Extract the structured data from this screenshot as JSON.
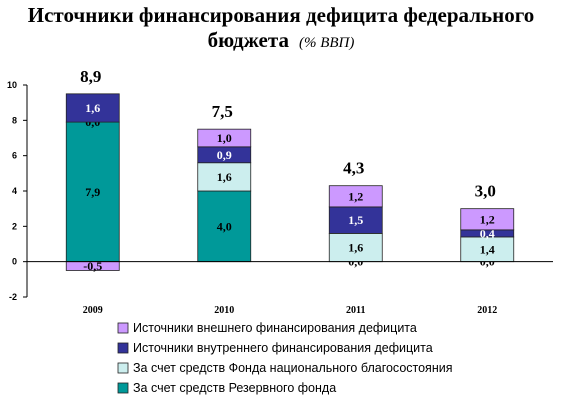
{
  "chart_data": {
    "type": "bar",
    "stacked": true,
    "title": "Источники финансирования дефицита федерального бюджета",
    "title_line1": "Источники финансирования дефицита федерального",
    "title_line2": "бюджета",
    "unit": "(% ВВП)",
    "categories": [
      "2009",
      "2010",
      "2011",
      "2012"
    ],
    "totals": [
      "8,9",
      "7,5",
      "4,3",
      "3,0"
    ],
    "ylim": [
      -2,
      10
    ],
    "yticks": [
      -2,
      0,
      2,
      4,
      6,
      8,
      10
    ],
    "series": [
      {
        "name": "За счет средств Резервного фонда",
        "color": "#009999",
        "label_color": "#000000",
        "values": [
          7.9,
          4.0,
          0.0,
          0.0
        ],
        "labels": [
          "7,9",
          "4,0",
          "0,0",
          "0,0"
        ]
      },
      {
        "name": "За счет средств Фонда национального благосостояния",
        "color": "#cceeee",
        "label_color": "#000000",
        "values": [
          0.0,
          1.6,
          1.6,
          1.4
        ],
        "labels": [
          "0,0",
          "1,6",
          "1,6",
          "1,4"
        ]
      },
      {
        "name": "Источники внутреннего финансирования дефицита",
        "color": "#333399",
        "label_color": "#ffffff",
        "values": [
          1.6,
          0.9,
          1.5,
          0.4
        ],
        "labels": [
          "1,6",
          "0,9",
          "1,5",
          "0,4"
        ]
      },
      {
        "name": "Источники внешнего финансирования дефицита",
        "color": "#cc99ff",
        "label_color": "#000000",
        "values": [
          -0.5,
          1.0,
          1.2,
          1.2
        ],
        "labels": [
          "-0,5",
          "1,0",
          "1,2",
          "1,2"
        ]
      }
    ],
    "legend_order": [
      3,
      2,
      1,
      0
    ],
    "legend_position": "bottom",
    "grid": false
  }
}
